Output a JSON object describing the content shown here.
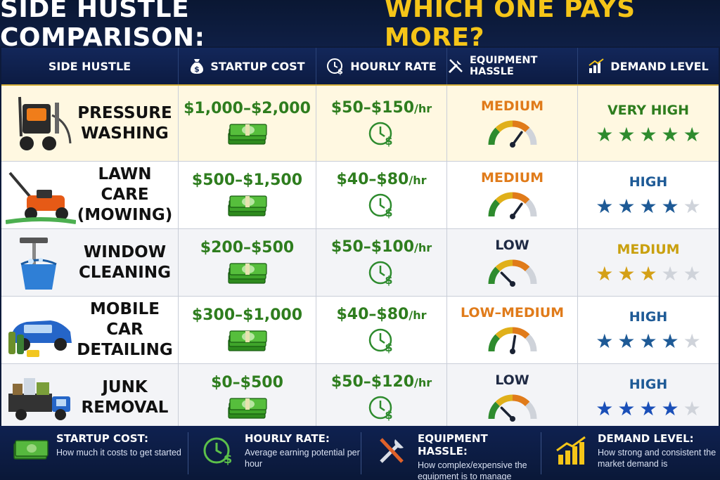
{
  "title": {
    "main": "SIDE HUSTLE COMPARISON:",
    "highlight": "WHICH ONE PAYS MORE?"
  },
  "colors": {
    "green": "#2e7d1e",
    "orange": "#e07b1a",
    "gold": "#d4a017",
    "blue": "#1e5a96",
    "star_green": "#2e8b2e",
    "star_gray": "#cfd3da"
  },
  "headers": {
    "side_hustle": "SIDE HUSTLE",
    "startup_cost": "STARTUP COST",
    "hourly_rate": "HOURLY RATE",
    "equipment_hassle": "EQUIPMENT HASSLE",
    "demand_level": "DEMAND LEVEL"
  },
  "rows": [
    {
      "name": "PRESSURE\nWASHING",
      "icon": "pressure-washer-icon",
      "cost": "$1,000–$2,000",
      "rate": "$50–$150",
      "rate_unit": "/hr",
      "hassle": "MEDIUM",
      "hassle_color": "#e07b1a",
      "hassle_level": 0.7,
      "demand": "VERY HIGH",
      "demand_color": "#2e7d1e",
      "stars": 5,
      "star_color": "#2e8b2e"
    },
    {
      "name": "LAWN CARE\n(MOWING)",
      "icon": "lawn-mower-icon",
      "cost": "$500–$1,500",
      "rate": "$40–$80",
      "rate_unit": "/hr",
      "hassle": "MEDIUM",
      "hassle_color": "#e07b1a",
      "hassle_level": 0.7,
      "demand": "HIGH",
      "demand_color": "#1e5a96",
      "stars": 4,
      "star_color": "#1e5a96"
    },
    {
      "name": "WINDOW\nCLEANING",
      "icon": "window-squeegee-bucket-icon",
      "cost": "$200–$500",
      "rate": "$50–$100",
      "rate_unit": "/hr",
      "hassle": "LOW",
      "hassle_color": "#1f2a44",
      "hassle_level": 0.25,
      "demand": "MEDIUM",
      "demand_color": "#c9a00e",
      "stars": 3,
      "star_color": "#d4a017"
    },
    {
      "name": "MOBILE CAR\nDETAILING",
      "icon": "car-detailing-icon",
      "cost": "$300–$1,000",
      "rate": "$40–$80",
      "rate_unit": "/hr",
      "hassle": "LOW–MEDIUM",
      "hassle_color": "#e07b1a",
      "hassle_level": 0.55,
      "demand": "HIGH",
      "demand_color": "#1e5a96",
      "stars": 4,
      "star_color": "#1e5a96"
    },
    {
      "name": "JUNK\nREMOVAL",
      "icon": "junk-truck-icon",
      "cost": "$0–$500",
      "rate": "$50–$120",
      "rate_unit": "/hr",
      "hassle": "LOW",
      "hassle_color": "#1f2a44",
      "hassle_level": 0.25,
      "demand": "HIGH",
      "demand_color": "#1e5a96",
      "stars": 4,
      "star_color": "#1a4fb8"
    }
  ],
  "footer": [
    {
      "title": "STARTUP COST:",
      "desc": "How much it costs to get started",
      "icon": "money-stack-icon"
    },
    {
      "title": "HOURLY RATE:",
      "desc": "Average earning potential per hour",
      "icon": "clock-dollar-icon"
    },
    {
      "title": "EQUIPMENT HASSLE:",
      "desc": "How complex/expensive the equipment is to manage",
      "icon": "tools-icon"
    },
    {
      "title": "DEMAND LEVEL:",
      "desc": "How strong and consistent the market demand is",
      "icon": "bar-chart-icon"
    }
  ]
}
